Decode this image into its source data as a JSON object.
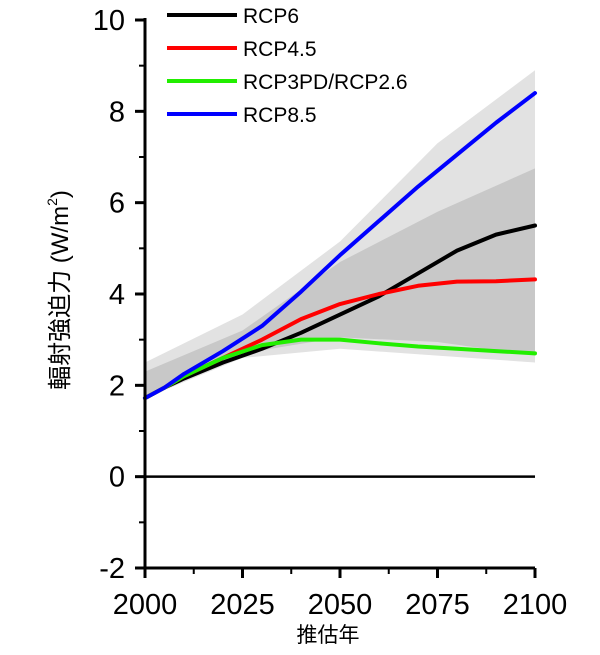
{
  "chart_data": {
    "type": "line",
    "title": "",
    "xlabel": "推估年",
    "ylabel": "輻射強迫力 (W/m²)",
    "ylabel_main": "輻射強迫力 (W/m",
    "ylabel_sup": "2",
    "ylabel_close": ")",
    "xlim": [
      2000,
      2100
    ],
    "ylim": [
      -2,
      10
    ],
    "x_ticks": [
      2000,
      2025,
      2050,
      2075,
      2100
    ],
    "x_tick_labels": [
      "2000",
      "2025",
      "2050",
      "2075",
      "2100"
    ],
    "y_ticks": [
      -2,
      0,
      2,
      4,
      6,
      8,
      10
    ],
    "y_tick_labels": [
      "-2",
      "0",
      "2",
      "4",
      "6",
      "8",
      "10"
    ],
    "reference_line_y": 0,
    "legend_position": "top-left",
    "series": [
      {
        "name": "RCP6",
        "color": "#000000",
        "x": [
          2000,
          2005,
          2010,
          2020,
          2030,
          2040,
          2050,
          2060,
          2070,
          2080,
          2090,
          2100
        ],
        "y": [
          1.72,
          1.95,
          2.15,
          2.5,
          2.8,
          3.15,
          3.55,
          3.95,
          4.45,
          4.95,
          5.3,
          5.5
        ]
      },
      {
        "name": "RCP4.5",
        "color": "#ff0000",
        "x": [
          2000,
          2005,
          2010,
          2020,
          2030,
          2040,
          2050,
          2060,
          2070,
          2080,
          2090,
          2100
        ],
        "y": [
          1.72,
          1.95,
          2.2,
          2.6,
          3.0,
          3.45,
          3.78,
          4.0,
          4.18,
          4.27,
          4.28,
          4.32
        ]
      },
      {
        "name": "RCP3PD/RCP2.6",
        "color": "#22ee00",
        "x": [
          2000,
          2005,
          2010,
          2020,
          2030,
          2040,
          2050,
          2060,
          2070,
          2080,
          2090,
          2100
        ],
        "y": [
          1.72,
          1.95,
          2.2,
          2.6,
          2.88,
          3.0,
          3.0,
          2.92,
          2.85,
          2.8,
          2.75,
          2.7
        ]
      },
      {
        "name": "RCP8.5",
        "color": "#0000ff",
        "x": [
          2000,
          2005,
          2010,
          2020,
          2030,
          2040,
          2050,
          2060,
          2070,
          2080,
          2090,
          2100
        ],
        "y": [
          1.72,
          1.95,
          2.25,
          2.75,
          3.3,
          4.05,
          4.85,
          5.6,
          6.35,
          7.05,
          7.75,
          8.4
        ]
      }
    ],
    "bands": [
      {
        "name": "outer-range",
        "color": "#e2e2e2",
        "x": [
          2000,
          2025,
          2050,
          2075,
          2100
        ],
        "upper": [
          2.5,
          3.55,
          5.15,
          7.3,
          8.9
        ],
        "lower": [
          1.72,
          2.6,
          2.8,
          2.65,
          2.5
        ]
      },
      {
        "name": "inner-range",
        "color": "#c8c8c8",
        "x": [
          2000,
          2025,
          2050,
          2075,
          2100
        ],
        "upper": [
          2.3,
          3.2,
          4.7,
          5.8,
          6.75
        ],
        "lower": [
          1.72,
          2.7,
          3.05,
          2.95,
          2.65
        ]
      }
    ]
  }
}
